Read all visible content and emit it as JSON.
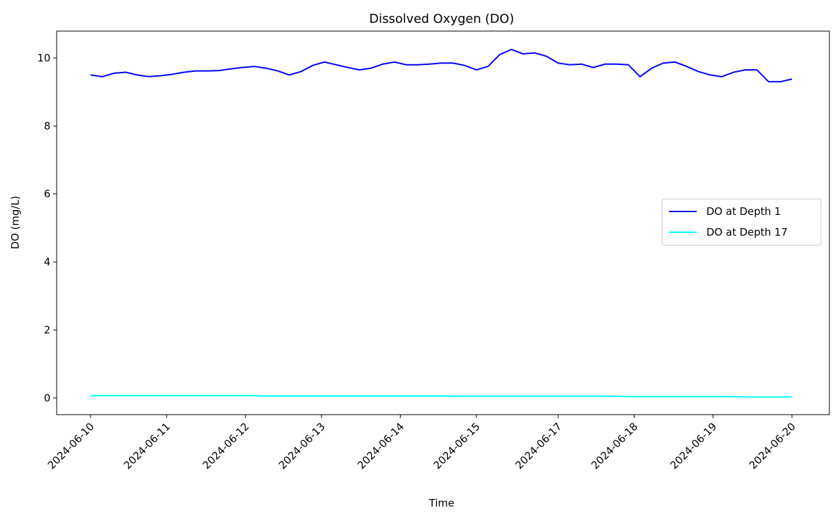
{
  "chart_data": {
    "type": "line",
    "title": "Dissolved Oxygen (DO)",
    "x_label": "Time",
    "y_label": "DO (mg/L)",
    "x": [
      0,
      4,
      8,
      12,
      16,
      20,
      24,
      28,
      32,
      36,
      40,
      44,
      48,
      52,
      56,
      60,
      64,
      68,
      72,
      76,
      80,
      84,
      88,
      92,
      96,
      100,
      104,
      108,
      112,
      116,
      120,
      124,
      128,
      132,
      136,
      140,
      144,
      148,
      152,
      156,
      160,
      164,
      168,
      172,
      176,
      180,
      184,
      188,
      192,
      196,
      200,
      204,
      208,
      212,
      216,
      220,
      224,
      228,
      232,
      236,
      240
    ],
    "series": [
      {
        "name": "DO at Depth 1",
        "color": "#0000ff",
        "values": [
          9.5,
          9.45,
          9.55,
          9.58,
          9.5,
          9.45,
          9.48,
          9.52,
          9.58,
          9.62,
          9.62,
          9.63,
          9.68,
          9.72,
          9.75,
          9.7,
          9.62,
          9.5,
          9.6,
          9.78,
          9.88,
          9.8,
          9.72,
          9.65,
          9.7,
          9.82,
          9.88,
          9.8,
          9.8,
          9.82,
          9.85,
          9.85,
          9.78,
          9.65,
          9.75,
          10.1,
          10.25,
          10.12,
          10.15,
          10.05,
          9.85,
          9.8,
          9.82,
          9.72,
          9.82,
          9.82,
          9.8,
          9.45,
          9.7,
          9.85,
          9.88,
          9.75,
          9.6,
          9.5,
          9.45,
          9.58,
          9.65,
          9.65,
          9.3,
          9.3,
          9.38
        ]
      },
      {
        "name": "DO at Depth 17",
        "color": "#00ffff",
        "values": [
          0.07,
          0.07,
          0.07,
          0.07,
          0.07,
          0.07,
          0.07,
          0.07,
          0.07,
          0.07,
          0.07,
          0.07,
          0.07,
          0.07,
          0.07,
          0.06,
          0.06,
          0.06,
          0.06,
          0.06,
          0.06,
          0.06,
          0.06,
          0.06,
          0.06,
          0.06,
          0.06,
          0.06,
          0.06,
          0.06,
          0.06,
          0.05,
          0.05,
          0.05,
          0.05,
          0.05,
          0.05,
          0.05,
          0.05,
          0.05,
          0.05,
          0.05,
          0.05,
          0.05,
          0.05,
          0.05,
          0.04,
          0.04,
          0.04,
          0.04,
          0.04,
          0.04,
          0.04,
          0.04,
          0.04,
          0.04,
          0.03,
          0.03,
          0.03,
          0.03,
          0.03
        ]
      }
    ],
    "xlim": [
      -11.6,
      252.8
    ],
    "xticks": [
      {
        "value": 0,
        "label": "2024-06-10"
      },
      {
        "value": 26,
        "label": "2024-06-11"
      },
      {
        "value": 53,
        "label": "2024-06-12"
      },
      {
        "value": 79,
        "label": "2024-06-13"
      },
      {
        "value": 106,
        "label": "2024-06-14"
      },
      {
        "value": 132,
        "label": "2024-06-15"
      },
      {
        "value": 160,
        "label": "2024-06-17"
      },
      {
        "value": 186,
        "label": "2024-06-18"
      },
      {
        "value": 213,
        "label": "2024-06-19"
      },
      {
        "value": 240,
        "label": "2024-06-20"
      }
    ],
    "ylim": [
      -0.49,
      10.79
    ],
    "yticks": [
      0,
      2,
      4,
      6,
      8,
      10
    ],
    "grid": false,
    "legend": "right"
  }
}
